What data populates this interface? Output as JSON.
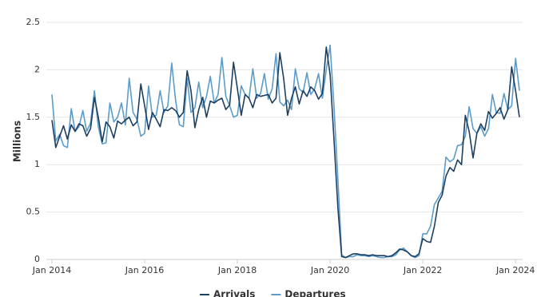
{
  "chart_data": {
    "type": "line",
    "y_label": "Millions",
    "x": [
      "2014-01",
      "2014-02",
      "2014-03",
      "2014-04",
      "2014-05",
      "2014-06",
      "2014-07",
      "2014-08",
      "2014-09",
      "2014-10",
      "2014-11",
      "2014-12",
      "2015-01",
      "2015-02",
      "2015-03",
      "2015-04",
      "2015-05",
      "2015-06",
      "2015-07",
      "2015-08",
      "2015-09",
      "2015-10",
      "2015-11",
      "2015-12",
      "2016-01",
      "2016-02",
      "2016-03",
      "2016-04",
      "2016-05",
      "2016-06",
      "2016-07",
      "2016-08",
      "2016-09",
      "2016-10",
      "2016-11",
      "2016-12",
      "2017-01",
      "2017-02",
      "2017-03",
      "2017-04",
      "2017-05",
      "2017-06",
      "2017-07",
      "2017-08",
      "2017-09",
      "2017-10",
      "2017-11",
      "2017-12",
      "2018-01",
      "2018-02",
      "2018-03",
      "2018-04",
      "2018-05",
      "2018-06",
      "2018-07",
      "2018-08",
      "2018-09",
      "2018-10",
      "2018-11",
      "2018-12",
      "2019-01",
      "2019-02",
      "2019-03",
      "2019-04",
      "2019-05",
      "2019-06",
      "2019-07",
      "2019-08",
      "2019-09",
      "2019-10",
      "2019-11",
      "2019-12",
      "2020-01",
      "2020-02",
      "2020-03",
      "2020-04",
      "2020-05",
      "2020-06",
      "2020-07",
      "2020-08",
      "2020-09",
      "2020-10",
      "2020-11",
      "2020-12",
      "2021-01",
      "2021-02",
      "2021-03",
      "2021-04",
      "2021-05",
      "2021-06",
      "2021-07",
      "2021-08",
      "2021-09",
      "2021-10",
      "2021-11",
      "2021-12",
      "2022-01",
      "2022-02",
      "2022-03",
      "2022-04",
      "2022-05",
      "2022-06",
      "2022-07",
      "2022-08",
      "2022-09",
      "2022-10",
      "2022-11",
      "2022-12",
      "2023-01",
      "2023-02",
      "2023-03",
      "2023-04",
      "2023-05",
      "2023-06",
      "2023-07",
      "2023-08",
      "2023-09",
      "2023-10",
      "2023-11",
      "2023-12",
      "2024-01",
      "2024-02"
    ],
    "series": [
      {
        "name": "Arrivals",
        "color": "#1d3f62",
        "values": [
          1.47,
          1.18,
          1.3,
          1.41,
          1.27,
          1.42,
          1.35,
          1.43,
          1.41,
          1.3,
          1.38,
          1.71,
          1.5,
          1.24,
          1.45,
          1.4,
          1.28,
          1.46,
          1.43,
          1.47,
          1.5,
          1.41,
          1.45,
          1.85,
          1.62,
          1.37,
          1.55,
          1.48,
          1.4,
          1.58,
          1.57,
          1.6,
          1.57,
          1.5,
          1.55,
          1.99,
          1.78,
          1.39,
          1.58,
          1.71,
          1.5,
          1.67,
          1.65,
          1.68,
          1.7,
          1.58,
          1.63,
          2.08,
          1.8,
          1.52,
          1.74,
          1.7,
          1.6,
          1.74,
          1.72,
          1.73,
          1.74,
          1.65,
          1.7,
          2.18,
          1.9,
          1.52,
          1.7,
          1.82,
          1.64,
          1.78,
          1.72,
          1.82,
          1.78,
          1.69,
          1.75,
          2.24,
          1.95,
          1.27,
          0.55,
          0.03,
          0.02,
          0.04,
          0.06,
          0.06,
          0.05,
          0.05,
          0.04,
          0.05,
          0.04,
          0.04,
          0.04,
          0.03,
          0.04,
          0.07,
          0.11,
          0.1,
          0.08,
          0.04,
          0.03,
          0.06,
          0.22,
          0.19,
          0.18,
          0.35,
          0.6,
          0.68,
          0.88,
          0.97,
          0.93,
          1.05,
          1.0,
          1.52,
          1.35,
          1.07,
          1.33,
          1.43,
          1.36,
          1.56,
          1.49,
          1.54,
          1.6,
          1.48,
          1.58,
          2.03,
          1.78,
          1.5
        ]
      },
      {
        "name": "Departures",
        "color": "#5b9cca",
        "values": [
          1.74,
          1.25,
          1.32,
          1.2,
          1.18,
          1.59,
          1.35,
          1.4,
          1.57,
          1.35,
          1.44,
          1.78,
          1.4,
          1.22,
          1.23,
          1.65,
          1.45,
          1.5,
          1.65,
          1.42,
          1.91,
          1.55,
          1.48,
          1.3,
          1.33,
          1.83,
          1.5,
          1.52,
          1.78,
          1.55,
          1.62,
          2.07,
          1.68,
          1.42,
          1.4,
          1.91,
          1.55,
          1.6,
          1.87,
          1.6,
          1.72,
          1.93,
          1.65,
          1.74,
          2.13,
          1.72,
          1.62,
          1.5,
          1.52,
          1.83,
          1.74,
          1.7,
          2.01,
          1.7,
          1.75,
          1.96,
          1.69,
          1.8,
          2.17,
          1.66,
          1.62,
          1.68,
          1.58,
          2.01,
          1.8,
          1.76,
          1.97,
          1.74,
          1.8,
          1.96,
          1.7,
          2.0,
          2.26,
          1.62,
          0.85,
          0.05,
          0.02,
          0.03,
          0.03,
          0.05,
          0.04,
          0.04,
          0.03,
          0.04,
          0.03,
          0.02,
          0.02,
          0.03,
          0.03,
          0.05,
          0.1,
          0.12,
          0.08,
          0.04,
          0.02,
          0.04,
          0.27,
          0.27,
          0.35,
          0.58,
          0.65,
          0.72,
          1.08,
          1.03,
          1.06,
          1.2,
          1.21,
          1.3,
          1.61,
          1.38,
          1.33,
          1.4,
          1.3,
          1.38,
          1.74,
          1.55,
          1.54,
          1.75,
          1.58,
          1.62,
          2.12,
          1.78
        ]
      }
    ],
    "xticks": [
      {
        "value": "2014-01",
        "label": "Jan 2014"
      },
      {
        "value": "2016-01",
        "label": "Jan 2016"
      },
      {
        "value": "2018-01",
        "label": "Jan 2018"
      },
      {
        "value": "2020-01",
        "label": "Jan 2020"
      },
      {
        "value": "2022-01",
        "label": "Jan 2022"
      },
      {
        "value": "2024-01",
        "label": "Jan 2024"
      }
    ],
    "ylim": [
      0,
      2.5
    ],
    "yticks": [
      0,
      0.5,
      1,
      1.5,
      2,
      2.5
    ],
    "grid": true,
    "legend": "bottom"
  }
}
